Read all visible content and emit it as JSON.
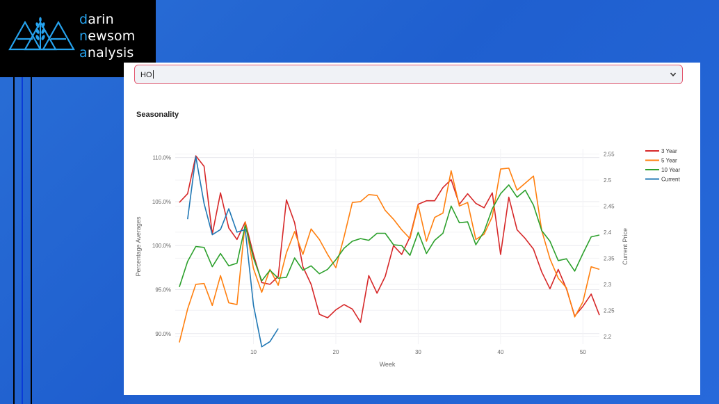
{
  "logo": {
    "line1_hl": "d",
    "line1_rest": "arin",
    "line2_hl": "n",
    "line2_rest": "ewsom",
    "line3_hl": "a",
    "line3_rest": "nalysis"
  },
  "select": {
    "value": "HO"
  },
  "section": {
    "title": "Seasonality"
  },
  "colors": {
    "three_year": "#d62728",
    "five_year": "#ff7f0e",
    "ten_year": "#2ca02c",
    "current": "#1f77b4"
  },
  "chart_data": {
    "type": "line",
    "xlabel": "Week",
    "ylabel": "Percentage Averages",
    "y2label": "Current Price",
    "xlim": [
      0.5,
      52
    ],
    "ylim": [
      88.8,
      111.0
    ],
    "y2lim": [
      2.185,
      2.56
    ],
    "x_ticks": [
      10,
      20,
      30,
      40,
      50
    ],
    "y_ticks": [
      90,
      95,
      100,
      105,
      110
    ],
    "y_tick_labels": [
      "90.0%",
      "95.0%",
      "100.0%",
      "105.0%",
      "110.0%"
    ],
    "y2_ticks": [
      2.2,
      2.25,
      2.3,
      2.35,
      2.4,
      2.45,
      2.5,
      2.55
    ],
    "y2_tick_labels": [
      "2.2",
      "2.25",
      "2.3",
      "2.35",
      "2.4",
      "2.45",
      "2.5",
      "2.55"
    ],
    "legend_position": "right",
    "series": [
      {
        "name": "3 Year",
        "axis": "left",
        "color": "#d62728",
        "x": [
          1,
          2,
          3,
          4,
          5,
          6,
          7,
          8,
          9,
          10,
          11,
          12,
          13,
          14,
          15,
          16,
          17,
          18,
          19,
          20,
          21,
          22,
          23,
          24,
          25,
          26,
          27,
          28,
          29,
          30,
          31,
          32,
          33,
          34,
          35,
          36,
          37,
          38,
          39,
          40,
          41,
          42,
          43,
          44,
          45,
          46,
          47,
          48,
          49,
          50,
          51,
          52
        ],
        "values": [
          104.9,
          105.9,
          110.2,
          109.0,
          101.3,
          106.0,
          102.0,
          100.7,
          102.7,
          99.0,
          95.8,
          95.6,
          96.5,
          105.2,
          102.6,
          97.6,
          95.6,
          92.2,
          91.8,
          92.7,
          93.3,
          92.8,
          91.3,
          96.6,
          94.6,
          96.5,
          100.0,
          99.0,
          101.0,
          104.7,
          105.1,
          105.1,
          106.6,
          107.5,
          104.7,
          105.9,
          104.8,
          104.3,
          106.0,
          99.0,
          105.5,
          101.8,
          100.8,
          99.6,
          97.0,
          95.1,
          97.3,
          95.1,
          92.0,
          93.1,
          94.5,
          92.1
        ]
      },
      {
        "name": "5 Year",
        "axis": "left",
        "color": "#ff7f0e",
        "x": [
          1,
          2,
          3,
          4,
          5,
          6,
          7,
          8,
          9,
          10,
          11,
          12,
          13,
          14,
          15,
          16,
          17,
          18,
          19,
          20,
          21,
          22,
          23,
          24,
          25,
          26,
          27,
          28,
          29,
          30,
          31,
          32,
          33,
          34,
          35,
          36,
          37,
          38,
          39,
          40,
          41,
          42,
          43,
          44,
          45,
          46,
          47,
          48,
          49,
          50,
          51,
          52
        ],
        "values": [
          89.0,
          92.8,
          95.6,
          95.7,
          93.2,
          96.6,
          93.5,
          93.3,
          102.7,
          97.4,
          94.7,
          97.3,
          95.5,
          99.2,
          101.6,
          99.0,
          101.9,
          100.7,
          99.0,
          97.5,
          101.0,
          104.9,
          105.0,
          105.8,
          105.7,
          104.0,
          103.0,
          101.8,
          100.8,
          104.6,
          100.5,
          103.2,
          103.7,
          108.5,
          104.5,
          104.9,
          100.7,
          101.3,
          103.3,
          108.7,
          108.8,
          106.3,
          107.1,
          107.9,
          101.7,
          98.5,
          96.3,
          95.2,
          91.9,
          93.6,
          97.6,
          97.3
        ]
      },
      {
        "name": "10 Year",
        "axis": "left",
        "color": "#2ca02c",
        "x": [
          1,
          2,
          3,
          4,
          5,
          6,
          7,
          8,
          9,
          10,
          11,
          12,
          13,
          14,
          15,
          16,
          17,
          18,
          19,
          20,
          21,
          22,
          23,
          24,
          25,
          26,
          27,
          28,
          29,
          30,
          31,
          32,
          33,
          34,
          35,
          36,
          37,
          38,
          39,
          40,
          41,
          42,
          43,
          44,
          45,
          46,
          47,
          48,
          49,
          50,
          51,
          52
        ],
        "values": [
          95.3,
          98.2,
          99.9,
          99.8,
          97.6,
          99.1,
          97.7,
          98.0,
          102.3,
          98.6,
          96.0,
          97.2,
          96.3,
          96.4,
          98.6,
          97.2,
          97.7,
          96.8,
          97.3,
          98.4,
          99.7,
          100.5,
          100.8,
          100.6,
          101.4,
          101.4,
          100.1,
          100.0,
          98.9,
          101.5,
          99.1,
          100.6,
          101.4,
          104.5,
          102.6,
          102.7,
          100.1,
          101.6,
          104.2,
          105.9,
          106.9,
          105.5,
          106.3,
          104.6,
          101.7,
          100.5,
          98.3,
          98.5,
          97.1,
          99.1,
          101.0,
          101.2
        ]
      },
      {
        "name": "Current",
        "axis": "right",
        "color": "#1f77b4",
        "x": [
          2,
          3,
          4,
          5,
          6,
          7,
          8,
          9,
          10,
          11,
          12,
          13
        ],
        "values": [
          2.425,
          2.545,
          2.455,
          2.395,
          2.405,
          2.445,
          2.4,
          2.405,
          2.26,
          2.18,
          2.19,
          2.215
        ]
      }
    ]
  }
}
